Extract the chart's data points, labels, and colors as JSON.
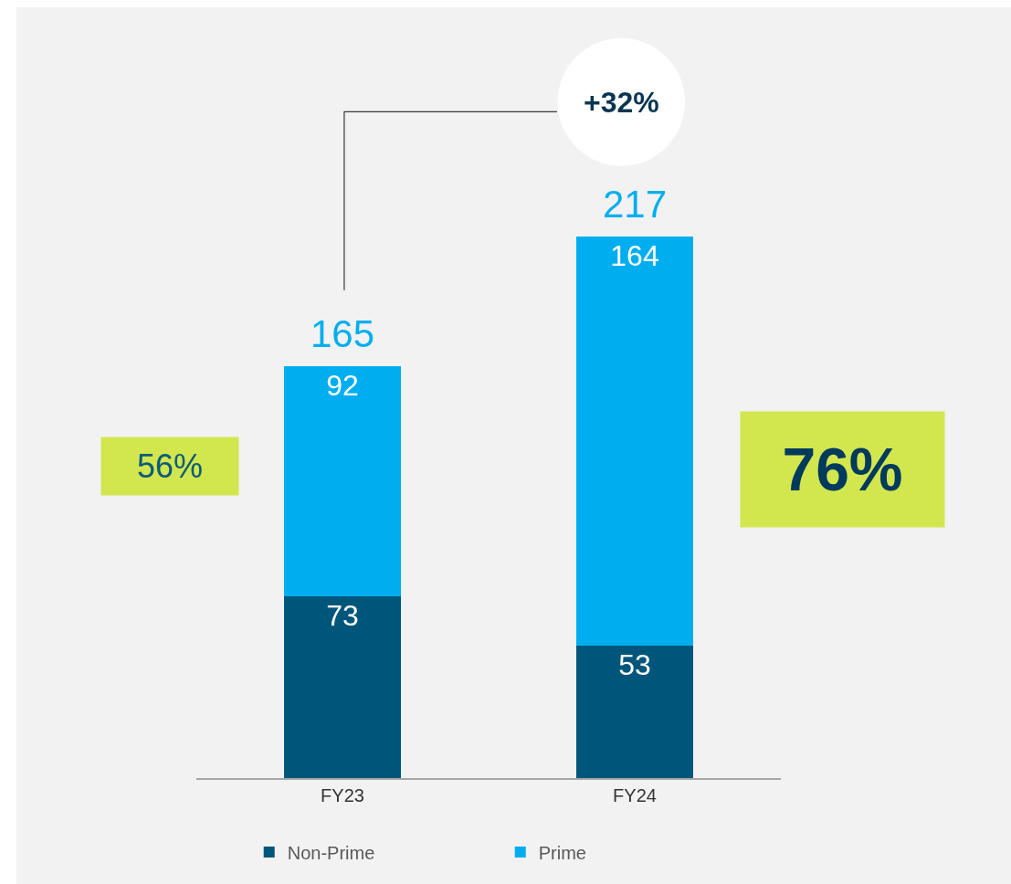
{
  "chart_data": {
    "type": "bar",
    "stacked": true,
    "categories": [
      "FY23",
      "FY24"
    ],
    "series": [
      {
        "name": "Non-Prime",
        "color": "#00567a",
        "values": [
          73,
          53
        ]
      },
      {
        "name": "Prime",
        "color": "#00aeef",
        "values": [
          92,
          164
        ]
      }
    ],
    "data_labels": true,
    "totals": [
      "165",
      "217"
    ],
    "annotations": [
      "+32%",
      "56%",
      "76%"
    ],
    "legend": "bottom",
    "grid": false
  }
}
